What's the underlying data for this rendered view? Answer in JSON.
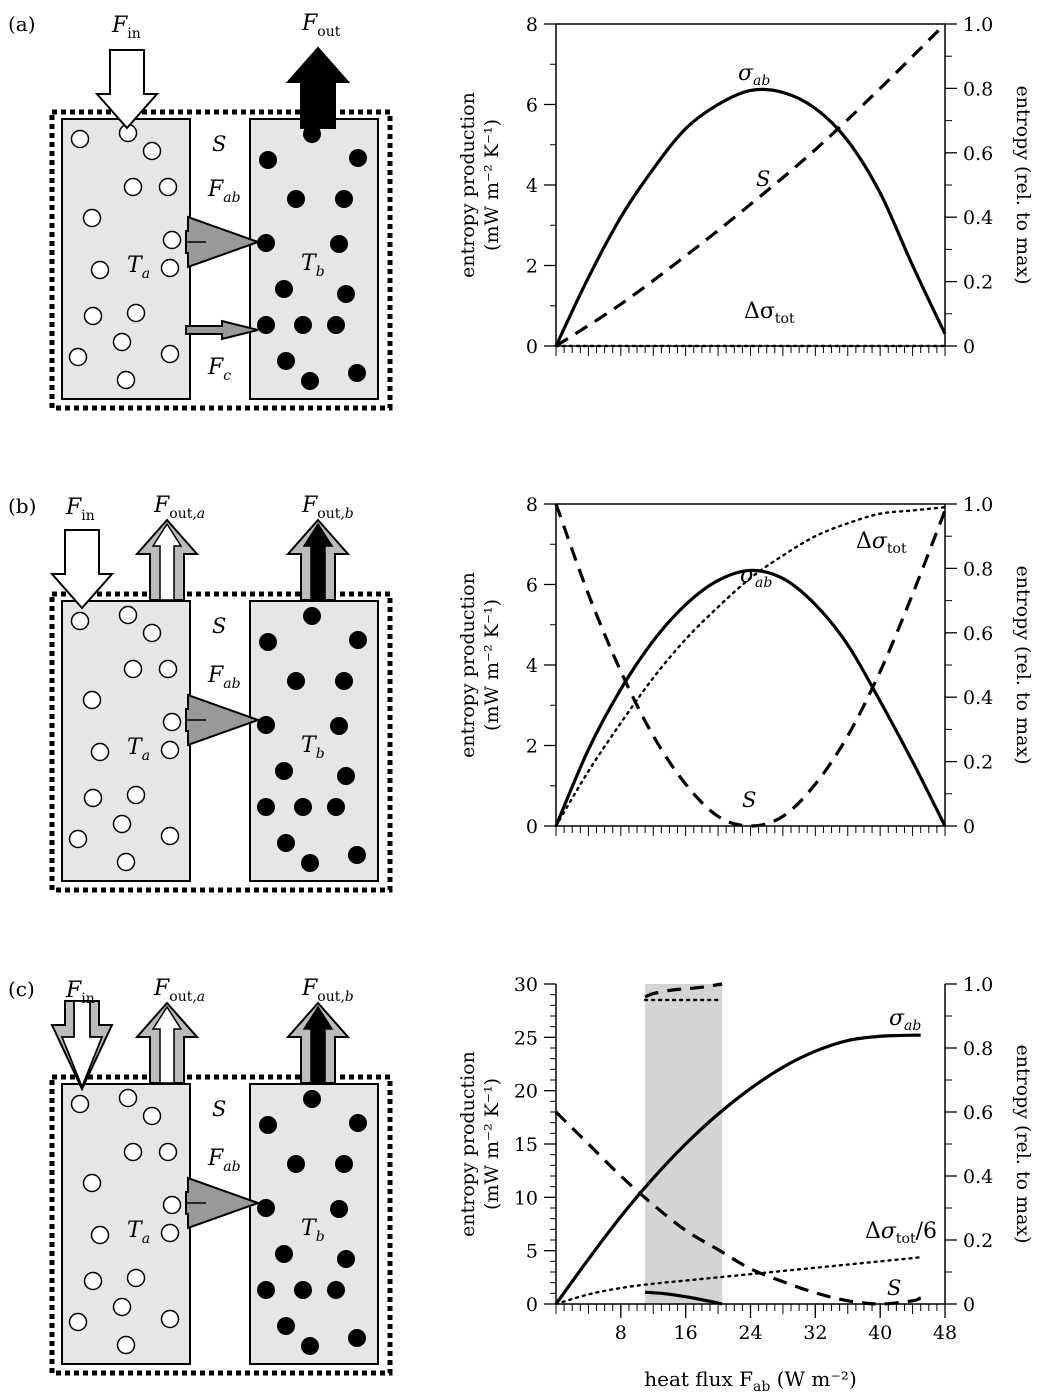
{
  "panels": [
    {
      "label": "(a)",
      "schematic": {
        "fluxes_top": [
          "F_in",
          "F_out"
        ],
        "box_a_label": "T_a",
        "box_b_label": "T_b",
        "system_label": "S",
        "arrow_ab_label": "F_ab",
        "arrow_c_label": "F_c"
      }
    },
    {
      "label": "(b)",
      "schematic": {
        "fluxes_top": [
          "F_in",
          "F_out,a",
          "F_out,b"
        ],
        "box_a_label": "T_a",
        "box_b_label": "T_b",
        "system_label": "S",
        "arrow_ab_label": "F_ab"
      }
    },
    {
      "label": "(c)",
      "schematic": {
        "fluxes_top": [
          "F_in",
          "F_out,a",
          "F_out,b"
        ],
        "box_a_label": "T_a",
        "box_b_label": "T_b",
        "system_label": "S",
        "arrow_ab_label": "F_ab"
      }
    }
  ],
  "text": {
    "left_axis_line1": "entropy production",
    "left_axis_line2": "(mW m⁻² K⁻¹)",
    "right_axis": "entropy (rel. to max)",
    "x_axis": "heat flux F",
    "x_axis_sub": "ab",
    "x_axis_units": " (W m⁻²)"
  },
  "chart_data": [
    {
      "type": "line",
      "panel": "(a)",
      "xlim": [
        0,
        48
      ],
      "ylim_left": [
        0,
        8
      ],
      "ylim_right": [
        0,
        1.0
      ],
      "left_ticks": [
        "0",
        "2",
        "4",
        "6",
        "8"
      ],
      "right_ticks": [
        "0",
        "0.2",
        "0.4",
        "0.6",
        "0.8",
        "1.0"
      ],
      "x_tick_labels_shown": false,
      "series": [
        {
          "name": "σ_ab",
          "axis": "left",
          "style": "solid",
          "x": [
            0,
            4,
            8,
            12,
            16,
            20,
            24,
            28,
            32,
            36,
            40,
            44,
            48
          ],
          "y": [
            0,
            1.7,
            3.2,
            4.4,
            5.4,
            6.0,
            6.35,
            6.3,
            5.9,
            5.1,
            3.8,
            2.0,
            0.3
          ]
        },
        {
          "name": "S",
          "axis": "right",
          "style": "dashed",
          "x": [
            0,
            8,
            16,
            24,
            32,
            40,
            48
          ],
          "y": [
            0,
            0.13,
            0.28,
            0.44,
            0.61,
            0.8,
            1.0
          ]
        },
        {
          "name": "Δσ_tot",
          "axis": "right",
          "style": "dotted",
          "x": [
            0,
            48
          ],
          "y": [
            0,
            0
          ]
        }
      ]
    },
    {
      "type": "line",
      "panel": "(b)",
      "xlim": [
        0,
        48
      ],
      "ylim_left": [
        0,
        8
      ],
      "ylim_right": [
        0,
        1.0
      ],
      "left_ticks": [
        "0",
        "2",
        "4",
        "6",
        "8"
      ],
      "right_ticks": [
        "0",
        "0.2",
        "0.4",
        "0.6",
        "0.8",
        "1.0"
      ],
      "x_tick_labels_shown": false,
      "series": [
        {
          "name": "σ_ab",
          "axis": "left",
          "style": "solid",
          "x": [
            0,
            4,
            8,
            12,
            16,
            20,
            24,
            28,
            32,
            36,
            40,
            44,
            48
          ],
          "y": [
            0,
            1.9,
            3.4,
            4.6,
            5.5,
            6.1,
            6.35,
            6.15,
            5.5,
            4.5,
            3.1,
            1.6,
            0
          ]
        },
        {
          "name": "S",
          "axis": "right",
          "style": "dashed",
          "x": [
            0,
            4,
            8,
            12,
            16,
            20,
            24,
            28,
            32,
            36,
            40,
            44,
            48
          ],
          "y": [
            1.0,
            0.72,
            0.48,
            0.28,
            0.13,
            0.03,
            0,
            0.03,
            0.13,
            0.28,
            0.48,
            0.72,
            0.98
          ]
        },
        {
          "name": "Δσ_tot",
          "axis": "right",
          "style": "dotted",
          "x": [
            0,
            4,
            8,
            12,
            16,
            20,
            24,
            28,
            32,
            36,
            40,
            44,
            48
          ],
          "y": [
            0,
            0.17,
            0.32,
            0.46,
            0.58,
            0.68,
            0.77,
            0.84,
            0.9,
            0.94,
            0.97,
            0.98,
            0.99
          ]
        }
      ]
    },
    {
      "type": "line",
      "panel": "(c)",
      "xlim": [
        0,
        48
      ],
      "ylim_left": [
        0,
        30
      ],
      "ylim_right": [
        0,
        1.0
      ],
      "x_ticks": [
        8,
        16,
        24,
        32,
        40,
        48
      ],
      "left_ticks": [
        "0",
        "5",
        "10",
        "15",
        "20",
        "25",
        "30"
      ],
      "right_ticks": [
        "0",
        "0.2",
        "0.4",
        "0.6",
        "0.8",
        "1.0"
      ],
      "shaded_x_range": [
        11,
        20.5
      ],
      "series": [
        {
          "name": "σ_ab",
          "axis": "left",
          "style": "solid",
          "x": [
            0,
            4,
            8,
            12,
            16,
            20,
            24,
            28,
            32,
            36,
            40,
            44,
            45
          ],
          "y": [
            0,
            4.2,
            8.2,
            11.8,
            15.0,
            17.8,
            20.2,
            22.2,
            23.7,
            24.7,
            25.1,
            25.2,
            25.2
          ]
        },
        {
          "name": "S",
          "axis": "right",
          "style": "dashed",
          "x": [
            0,
            4,
            8,
            12,
            16,
            20,
            24,
            28,
            32,
            36,
            40,
            44,
            45
          ],
          "y": [
            0.6,
            0.5,
            0.4,
            0.31,
            0.23,
            0.17,
            0.11,
            0.07,
            0.035,
            0.01,
            0,
            0.01,
            0.02
          ]
        },
        {
          "name": "Δσ_tot/6",
          "axis": "left",
          "style": "dotted",
          "x": [
            0,
            4,
            8,
            12,
            16,
            20,
            24,
            28,
            32,
            36,
            40,
            44,
            45
          ],
          "y": [
            0,
            0.9,
            1.5,
            1.9,
            2.2,
            2.5,
            2.8,
            3.1,
            3.4,
            3.7,
            4.0,
            4.3,
            4.4
          ]
        },
        {
          "name": "",
          "axis": "right",
          "style": "dashed",
          "x": [
            11,
            12,
            14,
            16,
            18,
            20.5
          ],
          "y": [
            0.96,
            0.97,
            0.98,
            0.985,
            0.99,
            1.0
          ]
        },
        {
          "name": "",
          "axis": "right",
          "style": "dotted",
          "x": [
            11,
            20.5
          ],
          "y": [
            0.95,
            0.95
          ]
        },
        {
          "name": "",
          "axis": "left",
          "style": "solid",
          "x": [
            11,
            13,
            15,
            17,
            19,
            20.5
          ],
          "y": [
            1.1,
            1.0,
            0.8,
            0.55,
            0.25,
            0
          ]
        }
      ]
    }
  ]
}
